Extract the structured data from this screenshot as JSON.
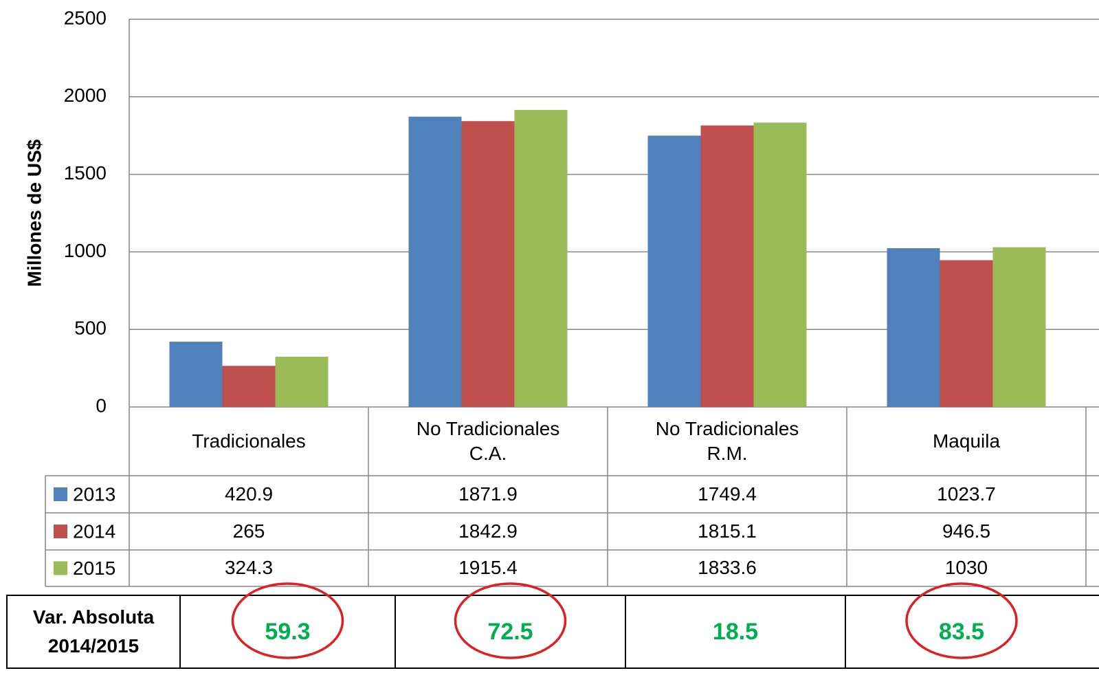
{
  "chart_data": {
    "type": "bar",
    "y_label": "Millones de US$",
    "categories": [
      "Tradicionales",
      "No Tradicionales C.A.",
      "No Tradicionales R.M.",
      "Maquila"
    ],
    "series": [
      {
        "name": "2013",
        "color": "#4f81bd",
        "values": [
          420.9,
          1871.9,
          1749.4,
          1023.7
        ]
      },
      {
        "name": "2014",
        "color": "#c0504d",
        "values": [
          265,
          1842.9,
          1815.1,
          946.5
        ]
      },
      {
        "name": "2015",
        "color": "#9bbb59",
        "values": [
          324.3,
          1915.4,
          1833.6,
          1030
        ]
      }
    ],
    "ylim": [
      0,
      2500
    ],
    "yticks": [
      0,
      500,
      1000,
      1500,
      2000,
      2500
    ],
    "grid": true,
    "data_table": true
  },
  "variation": {
    "label": "Var. Absoluta 2014/2015",
    "values": [
      59.3,
      72.5,
      18.5,
      83.5
    ],
    "color": "#00b050",
    "highlighted": [
      true,
      true,
      false,
      true
    ],
    "highlight_color": "#e02020"
  }
}
